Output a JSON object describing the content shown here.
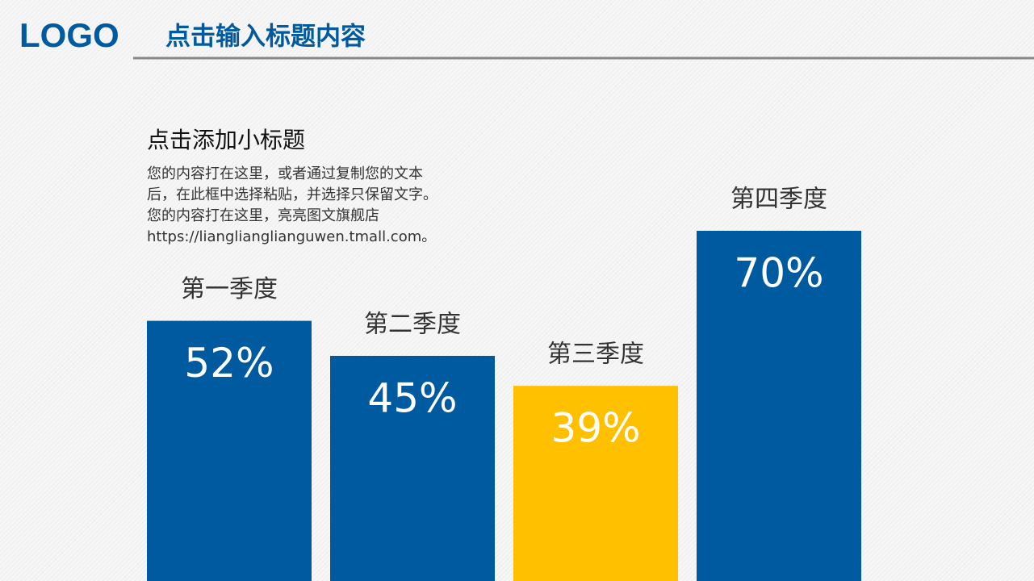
{
  "header": {
    "logo": "LOGO",
    "title": "点击输入标题内容"
  },
  "subtitle": "点击添加小标题",
  "body": [
    "您的内容打在这里，或者通过复制您的文本",
    "后，在此框中选择粘贴，并选择只保留文字。",
    "您的内容打在这里，亮亮图文旗舰店",
    "https://lianglianglianguwen.tmall.com。"
  ],
  "chart_data": {
    "type": "bar",
    "categories": [
      "第一季度",
      "第二季度",
      "第三季度",
      "第四季度"
    ],
    "values": [
      52,
      45,
      39,
      70
    ],
    "value_labels": [
      "52%",
      "45%",
      "39%",
      "70%"
    ],
    "colors": [
      "#005aa0",
      "#005aa0",
      "#ffc000",
      "#005aa0"
    ]
  }
}
